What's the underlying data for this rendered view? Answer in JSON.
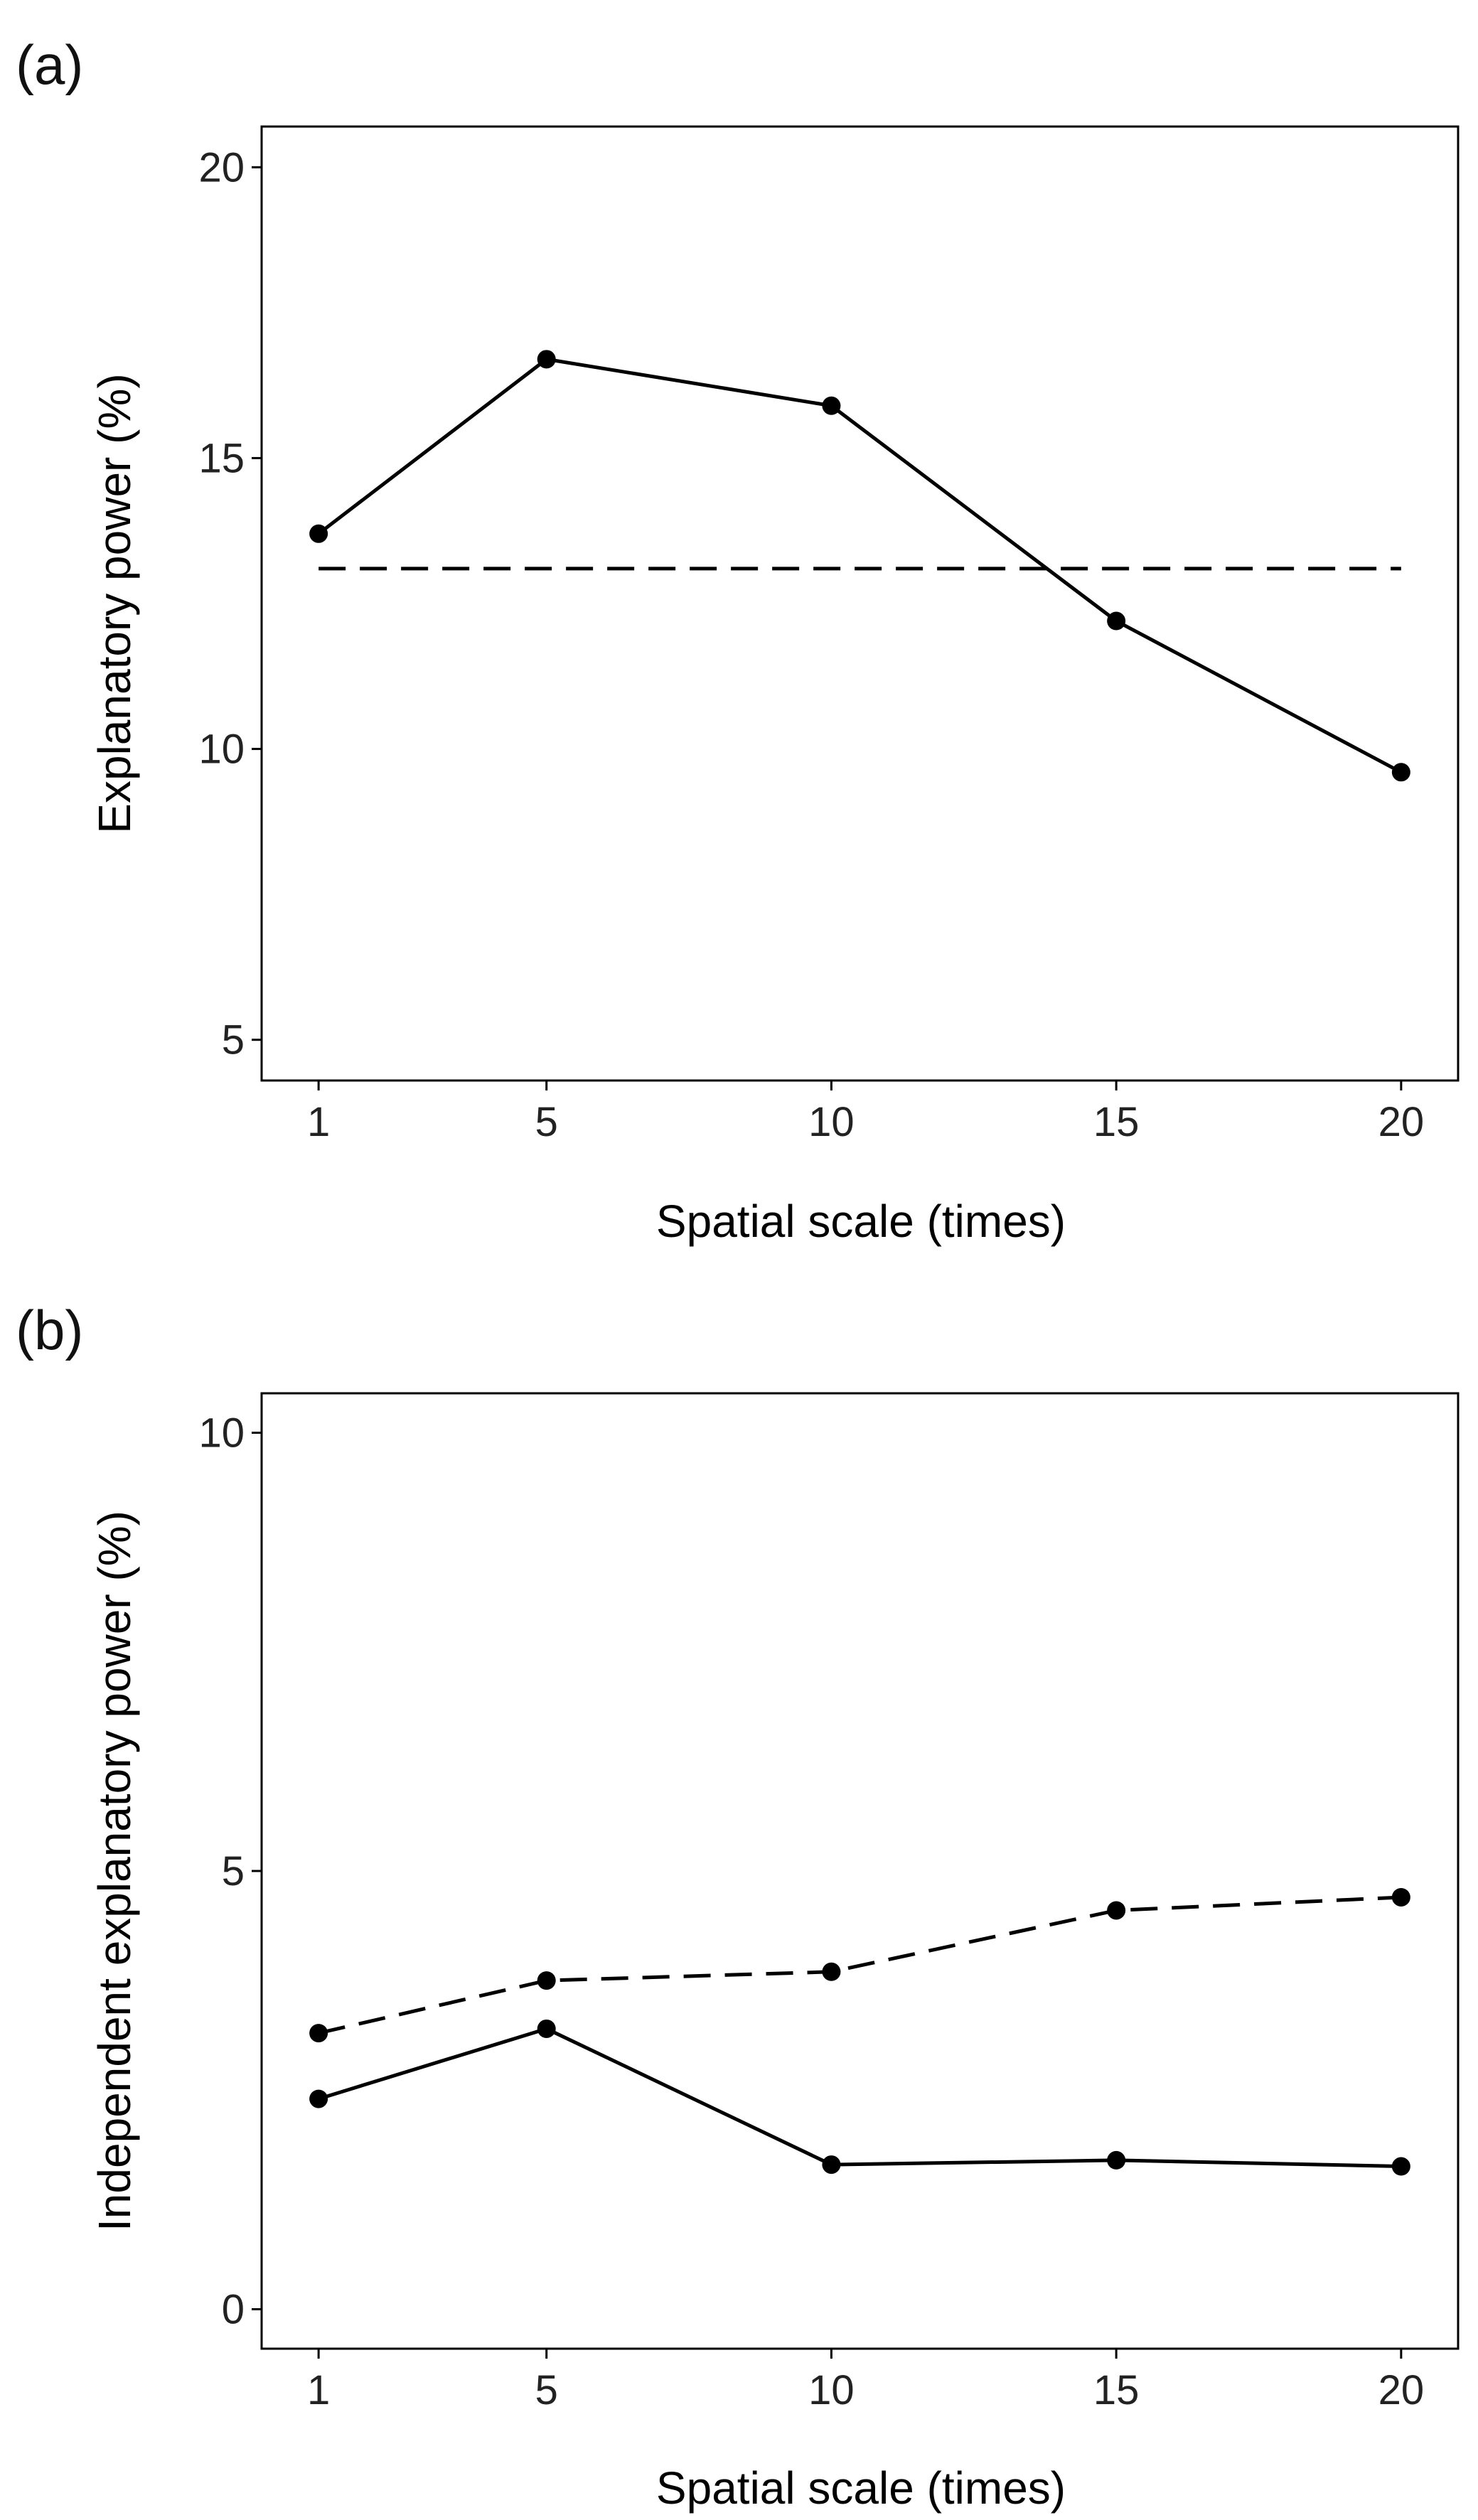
{
  "chart_data": [
    {
      "type": "line",
      "panel_label": "(a)",
      "title": "",
      "xlabel": "Spatial scale (times)",
      "ylabel": "Explanatory power (%)",
      "categories": [
        "1",
        "5",
        "10",
        "15",
        "20"
      ],
      "x": [
        1,
        5,
        10,
        15,
        20
      ],
      "xlim": [
        0,
        21
      ],
      "ylim": [
        4.3,
        20.7
      ],
      "yticks": [
        5,
        10,
        15,
        20
      ],
      "series": [
        {
          "name": "explanatory power",
          "style": "solid",
          "markers": true,
          "values": [
            13.7,
            16.7,
            15.9,
            12.2,
            9.6
          ]
        }
      ],
      "reference_lines": [
        {
          "name": "baseline",
          "style": "dashed",
          "y": 13.1,
          "x_range": [
            1,
            20
          ]
        }
      ],
      "grid": false,
      "legend": "none"
    },
    {
      "type": "line",
      "panel_label": "(b)",
      "title": "",
      "xlabel": "Spatial scale (times)",
      "ylabel": "Independent explanatory power (%)",
      "categories": [
        "1",
        "5",
        "10",
        "15",
        "20"
      ],
      "x": [
        1,
        5,
        10,
        15,
        20
      ],
      "xlim": [
        0,
        21
      ],
      "ylim": [
        -0.45,
        10.45
      ],
      "yticks": [
        0,
        5,
        10
      ],
      "series": [
        {
          "name": "dashed series",
          "style": "dashed",
          "markers": true,
          "values": [
            3.15,
            3.75,
            3.85,
            4.55,
            4.7
          ]
        },
        {
          "name": "solid series",
          "style": "solid",
          "markers": true,
          "values": [
            2.4,
            3.2,
            1.65,
            1.7,
            1.63
          ]
        }
      ],
      "reference_lines": [],
      "grid": false,
      "legend": "none"
    }
  ]
}
